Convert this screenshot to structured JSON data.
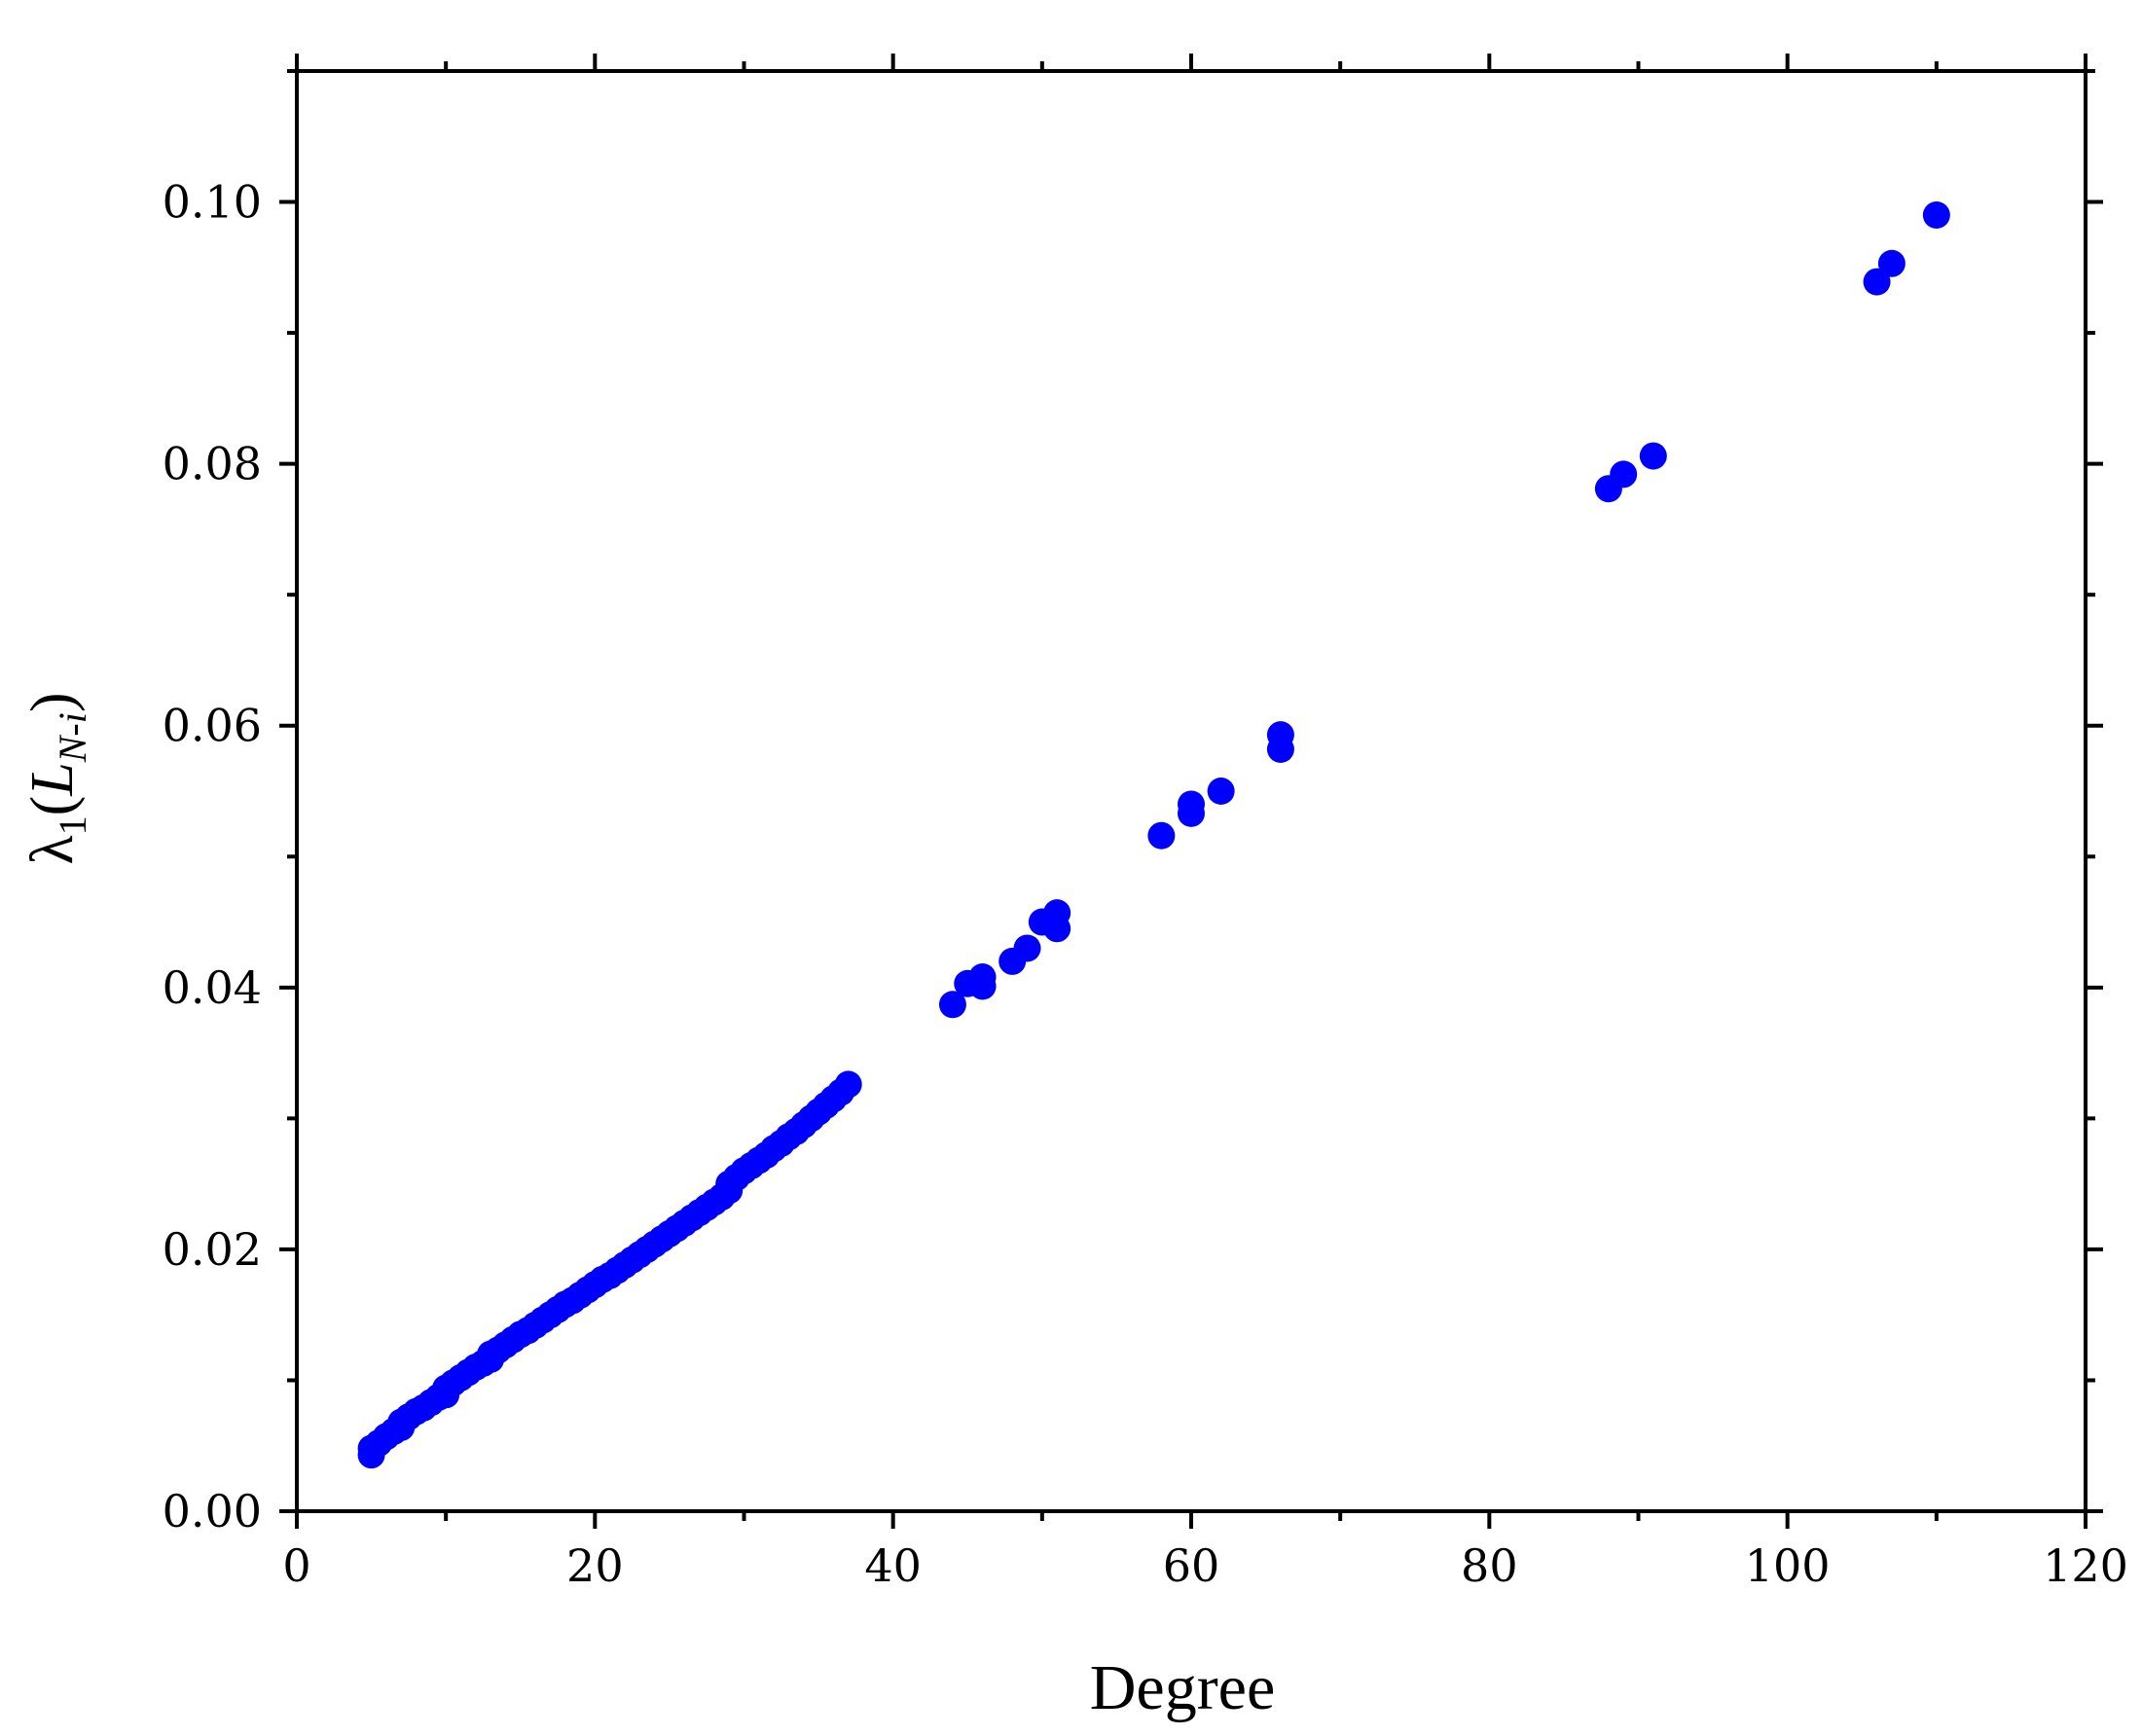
{
  "chart_data": {
    "type": "scatter",
    "xlabel": "Degree",
    "ylabel": {
      "base": "λ",
      "sub1": "1",
      "open": "(",
      "letter": "L",
      "sub2": "N-i",
      "close": ")"
    },
    "xlim": [
      0,
      120
    ],
    "ylim": [
      0,
      0.11
    ],
    "x_ticks": [
      0,
      20,
      40,
      60,
      80,
      100,
      120
    ],
    "x_tick_labels": [
      "0",
      "20",
      "40",
      "60",
      "80",
      "100",
      "120"
    ],
    "y_ticks": [
      0,
      0.02,
      0.04,
      0.06,
      0.08,
      0.1
    ],
    "y_tick_labels": [
      "0.00",
      "0.02",
      "0.04",
      "0.06",
      "0.08",
      "0.10"
    ],
    "x_minor_step": 10,
    "y_minor_step": 0.01,
    "grid": false,
    "legend": "none",
    "marker_color": "#0000ff",
    "series": [
      {
        "x": [
          5,
          5,
          5.5,
          6,
          6.5,
          7,
          7,
          7.5,
          8,
          8.5,
          9,
          9.5,
          10,
          10,
          10.5,
          11,
          11.5,
          12,
          12.5,
          13,
          13,
          13.5,
          14,
          14.5,
          15,
          15.5,
          16,
          16.5,
          17,
          17.5,
          18,
          18.5,
          19,
          19.5,
          20,
          20.5,
          21,
          21.5,
          22,
          22.5,
          23,
          23.5,
          24,
          24.5,
          25,
          25.5,
          26,
          26.5,
          27,
          27.5,
          28,
          28.5,
          29,
          29,
          29.5,
          30,
          30.5,
          31,
          31.5,
          32,
          32.5,
          33,
          33.5,
          34,
          34.5,
          35,
          35.5,
          36,
          36.5,
          37,
          44,
          45,
          46,
          46,
          48,
          49,
          50,
          51,
          51,
          58,
          60,
          60,
          62,
          66,
          66,
          88,
          89,
          91,
          106,
          107,
          110
        ],
        "y": [
          0.0043,
          0.0048,
          0.0052,
          0.0057,
          0.0061,
          0.0064,
          0.0068,
          0.0072,
          0.0076,
          0.0079,
          0.0083,
          0.0087,
          0.0089,
          0.0094,
          0.0098,
          0.0102,
          0.0106,
          0.011,
          0.0113,
          0.0116,
          0.012,
          0.0123,
          0.0127,
          0.0131,
          0.0135,
          0.0138,
          0.0142,
          0.0146,
          0.015,
          0.0154,
          0.0158,
          0.0161,
          0.0165,
          0.0169,
          0.0173,
          0.0177,
          0.018,
          0.0184,
          0.0188,
          0.0192,
          0.0196,
          0.02,
          0.0204,
          0.0208,
          0.0212,
          0.0216,
          0.022,
          0.0224,
          0.0228,
          0.0232,
          0.0236,
          0.024,
          0.0245,
          0.025,
          0.0255,
          0.026,
          0.0264,
          0.0268,
          0.0272,
          0.0277,
          0.0281,
          0.0286,
          0.029,
          0.0295,
          0.03,
          0.0305,
          0.031,
          0.0315,
          0.032,
          0.0326,
          0.0387,
          0.0403,
          0.0401,
          0.0408,
          0.042,
          0.043,
          0.045,
          0.0445,
          0.0457,
          0.0516,
          0.0533,
          0.054,
          0.055,
          0.0582,
          0.0593,
          0.0781,
          0.0792,
          0.0806,
          0.0939,
          0.0953,
          0.099
        ]
      }
    ]
  }
}
